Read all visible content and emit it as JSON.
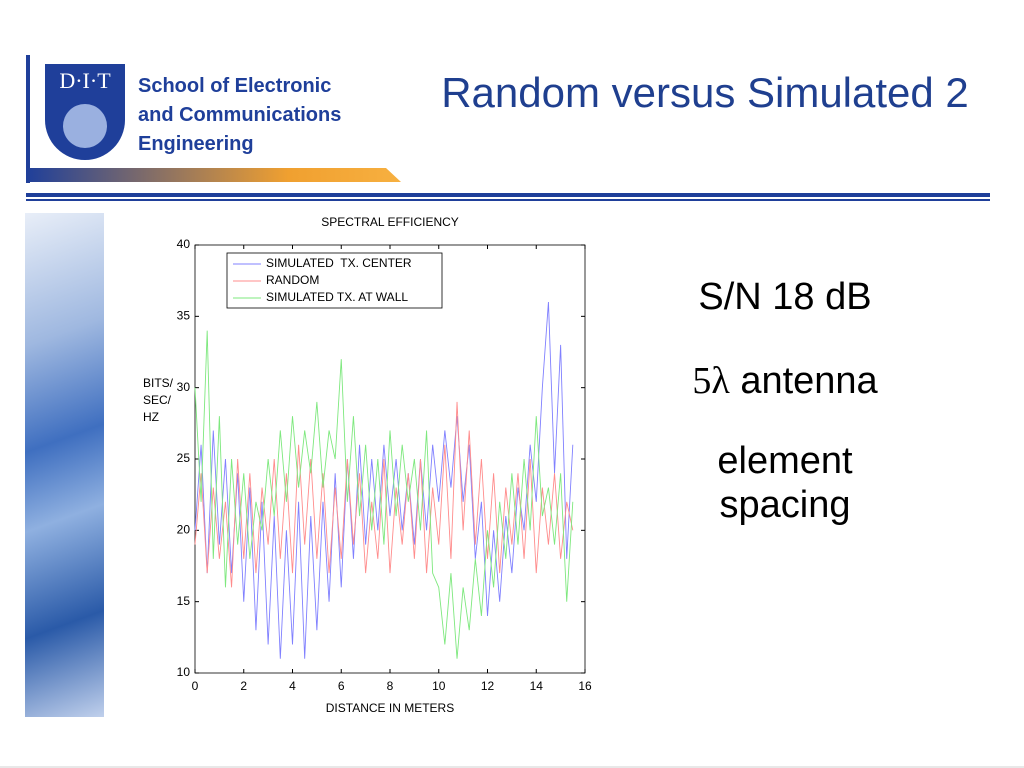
{
  "header": {
    "logo": "D·I·T",
    "school": [
      "School of Electronic",
      "and Communications",
      "Engineering"
    ]
  },
  "title": "Random versus Simulated 2",
  "side_text": {
    "line1": "S/N 18 dB",
    "symbol": "5λ",
    "line2": "antenna",
    "line3": "element spacing"
  },
  "chart_data": {
    "type": "line",
    "title": "SPECTRAL EFFICIENCY",
    "xlabel": "DISTANCE IN METERS",
    "ylabel": [
      "BITS/",
      "SEC/",
      "HZ"
    ],
    "x": [
      0,
      0.25,
      0.5,
      0.75,
      1,
      1.25,
      1.5,
      1.75,
      2,
      2.25,
      2.5,
      2.75,
      3,
      3.25,
      3.5,
      3.75,
      4,
      4.25,
      4.5,
      4.75,
      5,
      5.25,
      5.5,
      5.75,
      6,
      6.25,
      6.5,
      6.75,
      7,
      7.25,
      7.5,
      7.75,
      8,
      8.25,
      8.5,
      8.75,
      9,
      9.25,
      9.5,
      9.75,
      10,
      10.25,
      10.5,
      10.75,
      11,
      11.25,
      11.5,
      11.75,
      12,
      12.25,
      12.5,
      12.75,
      13,
      13.25,
      13.5,
      13.75,
      14,
      14.25,
      14.5,
      14.75,
      15,
      15.25,
      15.5
    ],
    "series": [
      {
        "name": "SIMULATED  TX. CENTER",
        "color": "#8080ff",
        "values": [
          20,
          26,
          17,
          27,
          19,
          25,
          17,
          24,
          15,
          23,
          13,
          22,
          12,
          21,
          11,
          20,
          12,
          22,
          11,
          21,
          13,
          22,
          15,
          24,
          16,
          25,
          18,
          26,
          19,
          25,
          20,
          26,
          21,
          25,
          20,
          24,
          19,
          25,
          20,
          26,
          22,
          27,
          23,
          28,
          22,
          26,
          18,
          22,
          14,
          20,
          15,
          21,
          17,
          23,
          20,
          26,
          22,
          30,
          36,
          24,
          33,
          18,
          26
        ]
      },
      {
        "name": "RANDOM",
        "color": "#ff8c8c",
        "values": [
          19,
          24,
          17,
          23,
          18,
          22,
          16,
          25,
          18,
          24,
          17,
          23,
          19,
          25,
          18,
          24,
          17,
          26,
          19,
          25,
          18,
          24,
          17,
          23,
          18,
          25,
          19,
          24,
          17,
          22,
          18,
          25,
          17,
          23,
          19,
          24,
          18,
          25,
          17,
          23,
          19,
          26,
          18,
          29,
          20,
          27,
          19,
          25,
          18,
          24,
          17,
          23,
          19,
          24,
          18,
          25,
          17,
          23,
          19,
          24,
          18,
          22,
          20
        ]
      },
      {
        "name": "SIMULATED TX. AT WALL",
        "color": "#7ee87e",
        "values": [
          30,
          22,
          34,
          18,
          28,
          16,
          25,
          19,
          24,
          18,
          22,
          20,
          25,
          21,
          27,
          22,
          28,
          23,
          27,
          24,
          29,
          23,
          27,
          25,
          32,
          22,
          28,
          21,
          26,
          20,
          25,
          19,
          27,
          21,
          26,
          22,
          25,
          20,
          27,
          17,
          16,
          12,
          17,
          11,
          16,
          13,
          18,
          14,
          20,
          16,
          22,
          18,
          24,
          19,
          25,
          20,
          28,
          21,
          23,
          19,
          24,
          15,
          22
        ]
      }
    ],
    "xlim": [
      0,
      16
    ],
    "xticks": [
      0,
      2,
      4,
      6,
      8,
      10,
      12,
      14,
      16
    ],
    "ylim": [
      10,
      40
    ],
    "yticks": [
      10,
      15,
      20,
      25,
      30,
      35,
      40
    ],
    "legend": "upper left"
  }
}
